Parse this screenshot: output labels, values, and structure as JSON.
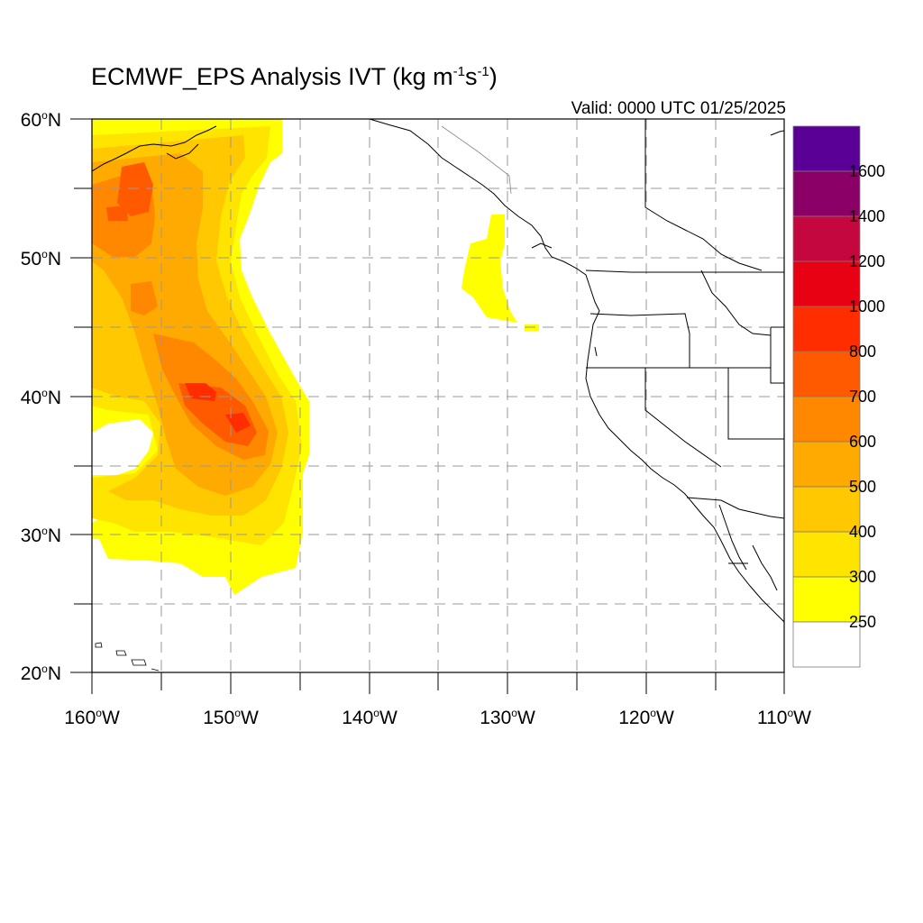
{
  "title": {
    "prefix": "ECMWF_EPS Analysis IVT (kg m",
    "exp1": "-1",
    "mid": "s",
    "exp2": "-1",
    "suffix": ")"
  },
  "valid_text": "Valid: 0000 UTC 01/25/2025",
  "lat_labels": [
    {
      "num": "60",
      "deg": "o",
      "hem": "N"
    },
    {
      "num": "50",
      "deg": "o",
      "hem": "N"
    },
    {
      "num": "40",
      "deg": "o",
      "hem": "N"
    },
    {
      "num": "30",
      "deg": "o",
      "hem": "N"
    },
    {
      "num": "20",
      "deg": "o",
      "hem": "N"
    }
  ],
  "lon_labels": [
    {
      "num": "160",
      "deg": "o",
      "hem": "W"
    },
    {
      "num": "150",
      "deg": "o",
      "hem": "W"
    },
    {
      "num": "140",
      "deg": "o",
      "hem": "W"
    },
    {
      "num": "130",
      "deg": "o",
      "hem": "W"
    },
    {
      "num": "120",
      "deg": "o",
      "hem": "W"
    },
    {
      "num": "110",
      "deg": "o",
      "hem": "W"
    }
  ],
  "colorbar": {
    "labels": [
      "1600",
      "1400",
      "1200",
      "1000",
      "800",
      "700",
      "600",
      "500",
      "400",
      "300",
      "250"
    ],
    "colors": [
      "#5a0096",
      "#8a0066",
      "#c4073e",
      "#e80013",
      "#ff2d00",
      "#ff5a00",
      "#ff8800",
      "#ffaa00",
      "#ffc800",
      "#ffe400",
      "#ffff00",
      "#ffffff"
    ]
  },
  "map": {
    "lon_range": [
      -160,
      -110
    ],
    "lat_range": [
      20,
      60
    ],
    "field_palette": {
      "y": "#ffff00",
      "g": "#ffe400",
      "o": "#ffc800",
      "a": "#ffaa00",
      "d": "#ff8800",
      "r": "#ff5a00",
      "R": "#ff2d00"
    }
  }
}
